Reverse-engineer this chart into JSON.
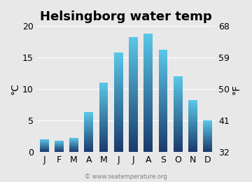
{
  "months": [
    "J",
    "F",
    "M",
    "A",
    "M",
    "J",
    "J",
    "A",
    "S",
    "O",
    "N",
    "D"
  ],
  "temps_c": [
    2.0,
    1.8,
    2.2,
    6.3,
    11.0,
    15.8,
    18.3,
    18.8,
    16.2,
    12.0,
    8.2,
    5.0
  ],
  "title": "Helsingborg water temp",
  "ylabel_left": "°C",
  "ylabel_right": "°F",
  "ylim_c": [
    0,
    20
  ],
  "yticks_c": [
    0,
    5,
    10,
    15,
    20
  ],
  "yticks_f": [
    32,
    41,
    50,
    59,
    68
  ],
  "bar_color_top": "#5bc8e8",
  "bar_color_bottom": "#1a3a6b",
  "background_color": "#e8e8e8",
  "plot_bg_color": "#e8e8e8",
  "watermark": "© www.seatemperature.org",
  "title_fontsize": 13,
  "tick_fontsize": 9,
  "label_fontsize": 10
}
